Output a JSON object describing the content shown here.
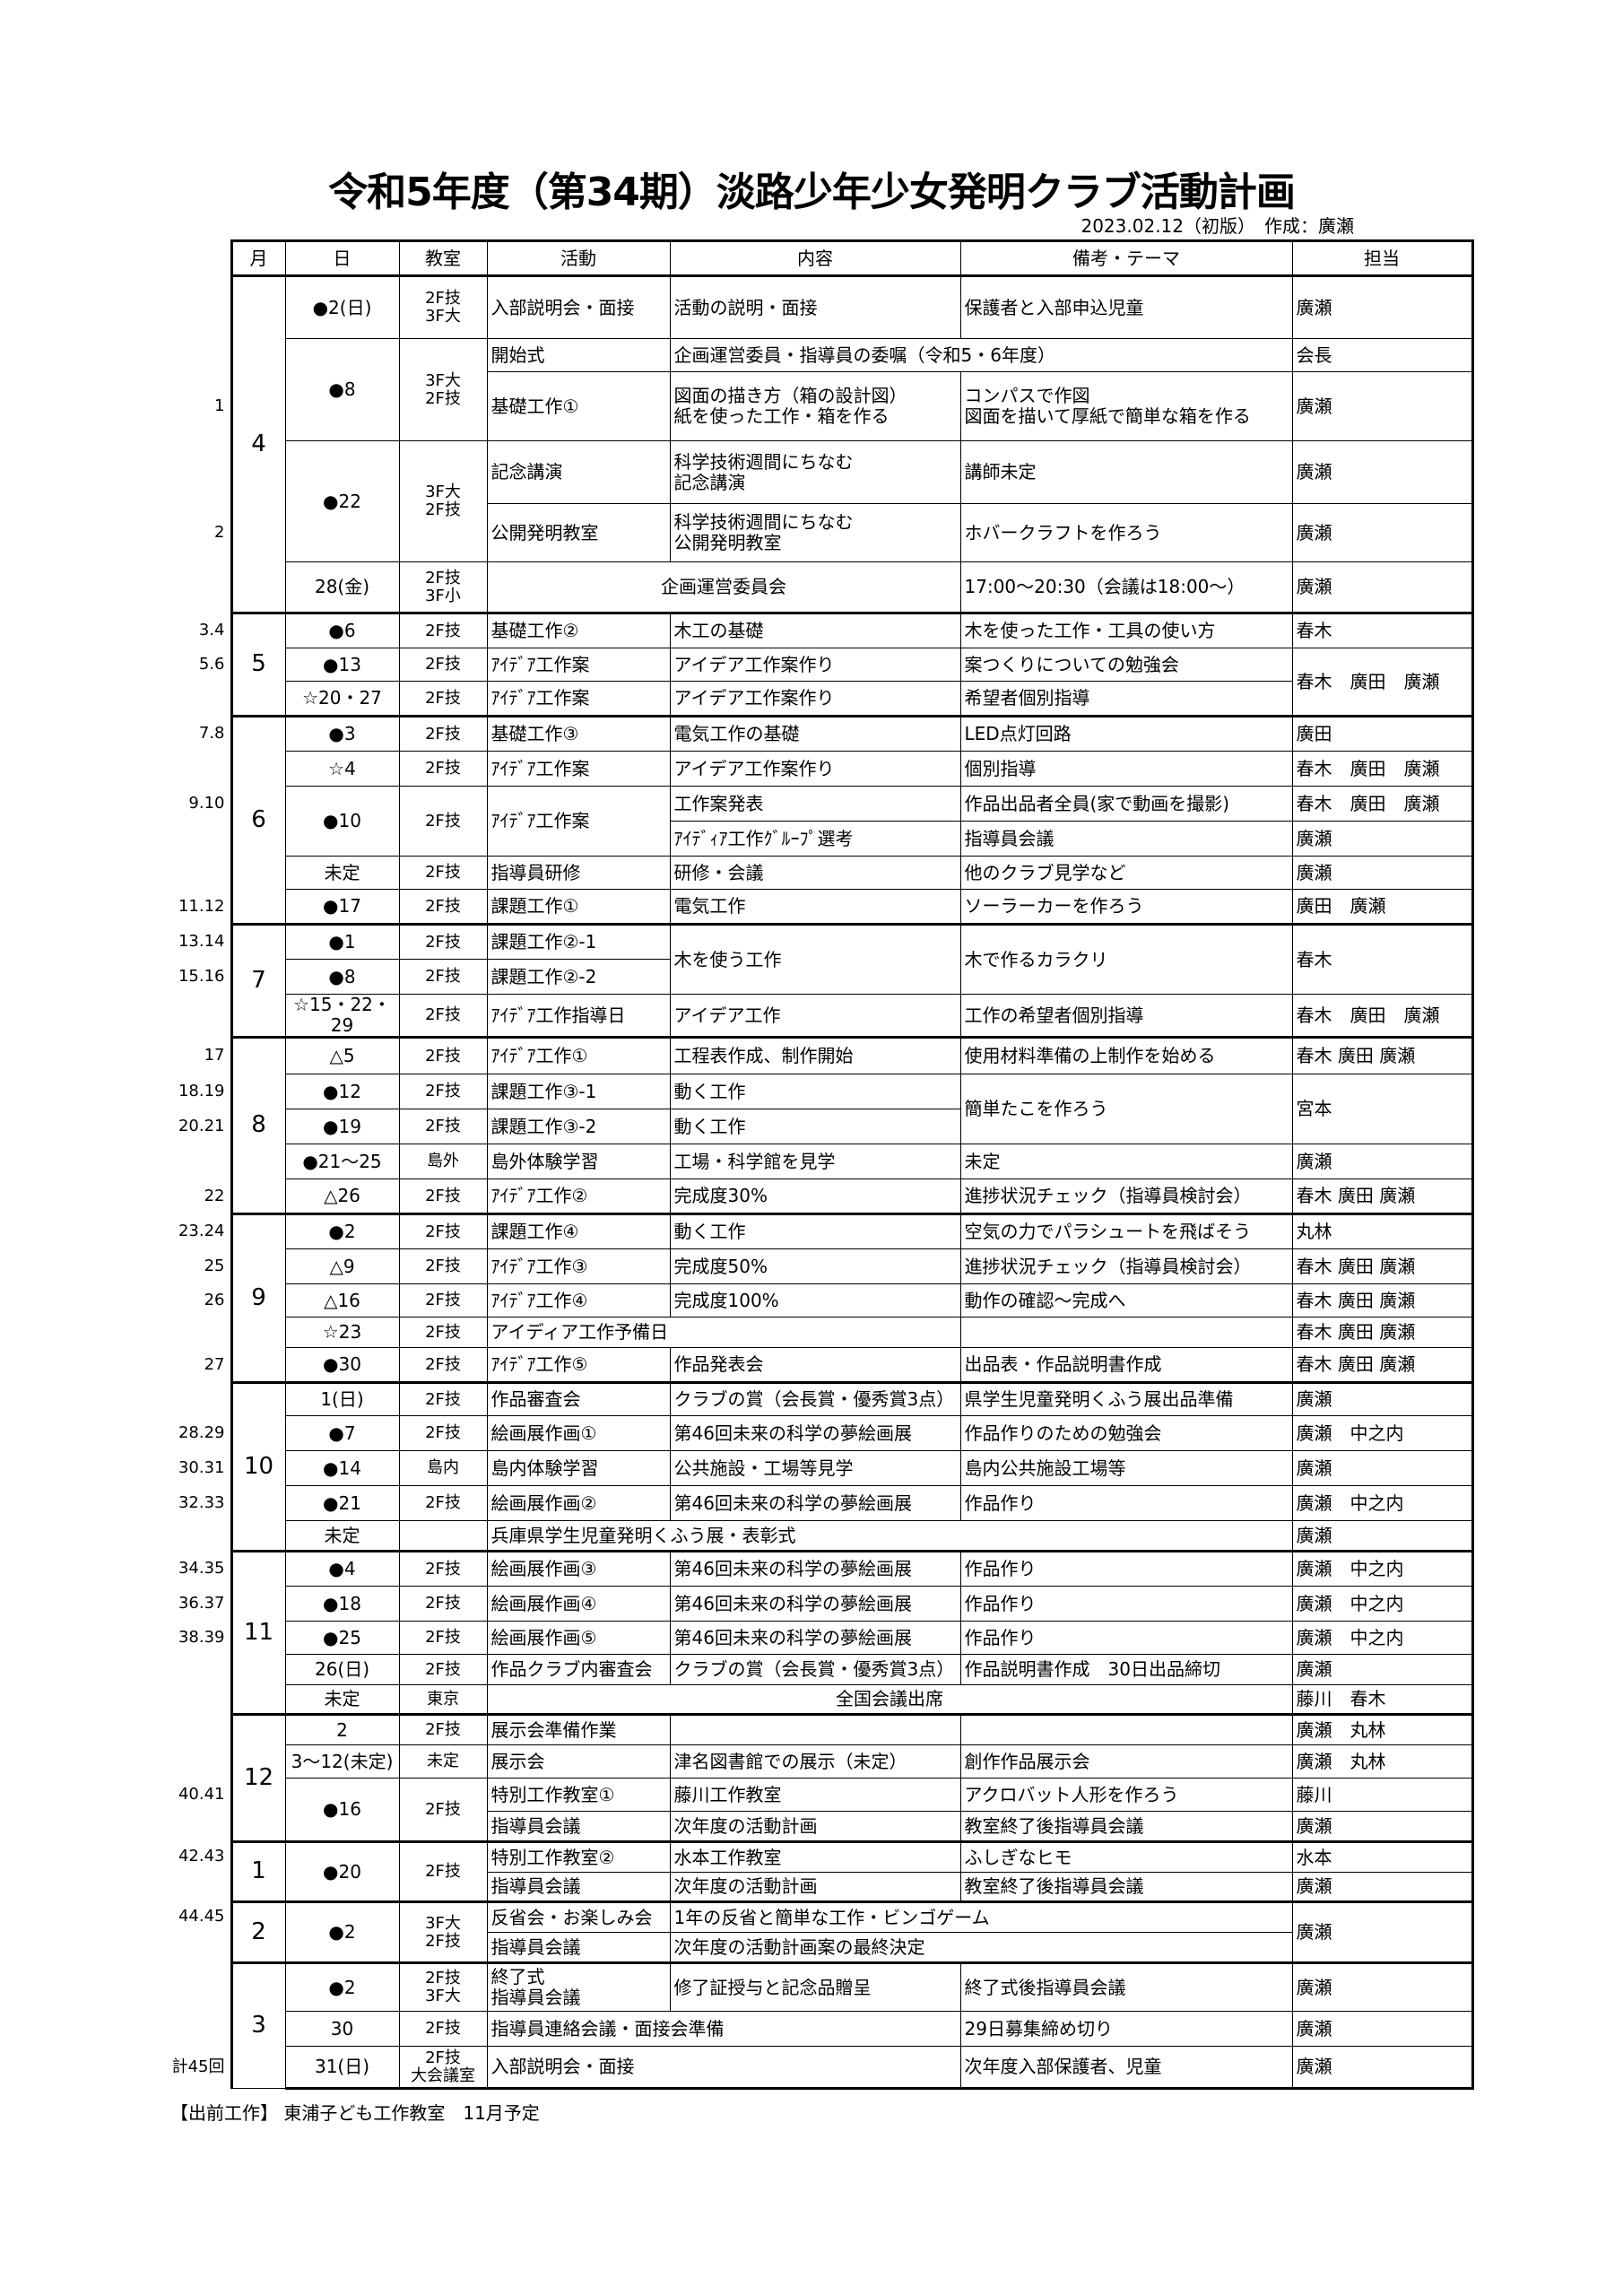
{
  "title": "令和5年度（第34期）淡路少年少女発明クラブ活動計画",
  "meta": "2023.02.12（初版）　作成：廣瀬",
  "headers": {
    "month": "月",
    "date": "日",
    "room": "教室",
    "activity": "活動",
    "content": "内容",
    "remarks": "備考・テーマ",
    "staff": "担当"
  },
  "rows": [
    {
      "month": "4",
      "date": "●2(日)",
      "room": "2F技\n3F大",
      "activity": "入部説明会・面接",
      "content": "活動の説明・面接",
      "remarks": "保護者と入部申込児童",
      "staff": "廣瀬"
    },
    {
      "date": "●8",
      "room": "3F大\n2F技",
      "activity": "開始式",
      "content": "企画運営委員・指導員の委嘱（令和5・6年度）",
      "staff": "会長"
    },
    {
      "note": "1",
      "activity": "基礎工作①",
      "content": "図面の描き方（箱の設計図）\n紙を使った工作・箱を作る",
      "remarks": "コンパスで作図\n図面を描いて厚紙で簡単な箱を作る",
      "staff": "廣瀬"
    },
    {
      "date": "●22",
      "room": "3F大\n2F技",
      "activity": "記念講演",
      "content": "科学技術週間にちなむ\n記念講演",
      "remarks": "講師未定",
      "staff": "廣瀬"
    },
    {
      "note": "2",
      "activity": "公開発明教室",
      "content": "科学技術週間にちなむ\n公開発明教室",
      "remarks": "ホバークラフトを作ろう",
      "staff": "廣瀬"
    },
    {
      "date": "28(金)",
      "room": "2F技\n3F小",
      "activity": "企画運営委員会",
      "remarks": "17:00～20:30（会議は18:00～）",
      "staff": "廣瀬"
    },
    {
      "note": "3.4",
      "month": "5",
      "date": "●6",
      "room": "2F技",
      "activity": "基礎工作②",
      "content": "木工の基礎",
      "remarks": "木を使った工作・工具の使い方",
      "staff": "春木"
    },
    {
      "note": "5.6",
      "date": "●13",
      "room": "2F技",
      "activity": "ｱｲﾃﾞｱ工作案",
      "content": "アイデア工作案作り",
      "remarks": "案つくりについての勉強会",
      "staff": "春木　廣田　廣瀬"
    },
    {
      "date": "☆20・27",
      "room": "2F技",
      "activity": "ｱｲﾃﾞｱ工作案",
      "content": "アイデア工作案作り",
      "remarks": "希望者個別指導"
    },
    {
      "note": "7.8",
      "month": "6",
      "date": "●3",
      "room": "2F技",
      "activity": "基礎工作③",
      "content": "電気工作の基礎",
      "remarks": "LED点灯回路",
      "staff": "廣田"
    },
    {
      "date": "☆4",
      "room": "2F技",
      "activity": "ｱｲﾃﾞｱ工作案",
      "content": "アイデア工作案作り",
      "remarks": "個別指導",
      "staff": "春木　廣田　廣瀬"
    },
    {
      "note": "9.10",
      "date": "●10",
      "room": "2F技",
      "activity": "ｱｲﾃﾞｱ工作案",
      "content": "工作案発表",
      "remarks": "作品出品者全員(家で動画を撮影)",
      "staff": "春木　廣田　廣瀬"
    },
    {
      "content": "ｱｲﾃﾞｨｱ工作ｸﾞﾙｰﾌﾟ選考",
      "remarks": "指導員会議",
      "staff": "廣瀬"
    },
    {
      "date": "未定",
      "room": "2F技",
      "activity": "指導員研修",
      "content": "研修・会議",
      "remarks": "他のクラブ見学など",
      "staff": "廣瀬"
    },
    {
      "note": "11.12",
      "date": "●17",
      "room": "2F技",
      "activity": "課題工作①",
      "content": "電気工作",
      "remarks": "ソーラーカーを作ろう",
      "staff": "廣田　廣瀬"
    },
    {
      "note": "13.14",
      "month": "7",
      "date": "●1",
      "room": "2F技",
      "activity": "課題工作②-1",
      "content": "木を使う工作",
      "remarks": "木で作るカラクリ",
      "staff": "春木"
    },
    {
      "note": "15.16",
      "date": "●8",
      "room": "2F技",
      "activity": "課題工作②-2"
    },
    {
      "date": "☆15・22・29",
      "room": "2F技",
      "activity": "ｱｲﾃﾞｱ工作指導日",
      "content": "アイデア工作",
      "remarks": "工作の希望者個別指導",
      "staff": "春木　廣田　廣瀬"
    },
    {
      "note": "17",
      "month": "8",
      "date": "△5",
      "room": "2F技",
      "activity": "ｱｲﾃﾞｱ工作①",
      "content": "工程表作成、制作開始",
      "remarks": "使用材料準備の上制作を始める",
      "staff": "春木 廣田 廣瀬"
    },
    {
      "note": "18.19",
      "date": "●12",
      "room": "2F技",
      "activity": "課題工作③-1",
      "content": "動く工作",
      "remarks": "簡単たこを作ろう",
      "staff": "宮本"
    },
    {
      "note": "20.21",
      "date": "●19",
      "room": "2F技",
      "activity": "課題工作③-2",
      "content": "動く工作"
    },
    {
      "date": "●21～25",
      "room": "島外",
      "activity": "島外体験学習",
      "content": "工場・科学館を見学",
      "remarks": "未定",
      "staff": "廣瀬"
    },
    {
      "note": "22",
      "date": "△26",
      "room": "2F技",
      "activity": "ｱｲﾃﾞｱ工作②",
      "content": "完成度30%",
      "remarks": "進捗状況チェック（指導員検討会）",
      "staff": "春木 廣田 廣瀬"
    },
    {
      "note": "23.24",
      "month": "9",
      "date": "●2",
      "room": "2F技",
      "activity": "課題工作④",
      "content": "動く工作",
      "remarks": "空気の力でパラシュートを飛ばそう",
      "staff": "丸林"
    },
    {
      "note": "25",
      "date": "△9",
      "room": "2F技",
      "activity": "ｱｲﾃﾞｱ工作③",
      "content": "完成度50%",
      "remarks": "進捗状況チェック（指導員検討会）",
      "staff": "春木 廣田 廣瀬"
    },
    {
      "note": "26",
      "date": "△16",
      "room": "2F技",
      "activity": "ｱｲﾃﾞｱ工作④",
      "content": "完成度100%",
      "remarks": "動作の確認～完成へ",
      "staff": "春木 廣田 廣瀬"
    },
    {
      "date": "☆23",
      "room": "2F技",
      "activity": "アイディア工作予備日",
      "staff": "春木 廣田 廣瀬"
    },
    {
      "note": "27",
      "date": "●30",
      "room": "2F技",
      "activity": "ｱｲﾃﾞｱ工作⑤",
      "content": "作品発表会",
      "remarks": "出品表・作品説明書作成",
      "staff": "春木 廣田 廣瀬"
    },
    {
      "month": "10",
      "date": "1(日)",
      "room": "2F技",
      "activity": "作品審査会",
      "content": "クラブの賞（会長賞・優秀賞3点）",
      "remarks": "県学生児童発明くふう展出品準備",
      "staff": "廣瀬"
    },
    {
      "note": "28.29",
      "date": "●7",
      "room": "2F技",
      "activity": "絵画展作画①",
      "content": "第46回未来の科学の夢絵画展",
      "remarks": "作品作りのための勉強会",
      "staff": "廣瀬　中之内"
    },
    {
      "note": "30.31",
      "date": "●14",
      "room": "島内",
      "activity": "島内体験学習",
      "content": "公共施設・工場等見学",
      "remarks": "島内公共施設工場等",
      "staff": "廣瀬"
    },
    {
      "note": "32.33",
      "date": "●21",
      "room": "2F技",
      "activity": "絵画展作画②",
      "content": "第46回未来の科学の夢絵画展",
      "remarks": "作品作り",
      "staff": "廣瀬　中之内"
    },
    {
      "date": "未定",
      "activity": "兵庫県学生児童発明くふう展・表彰式",
      "staff": "廣瀬"
    },
    {
      "note": "34.35",
      "month": "11",
      "date": "●4",
      "room": "2F技",
      "activity": "絵画展作画③",
      "content": "第46回未来の科学の夢絵画展",
      "remarks": "作品作り",
      "staff": "廣瀬　中之内"
    },
    {
      "note": "36.37",
      "date": "●18",
      "room": "2F技",
      "activity": "絵画展作画④",
      "content": "第46回未来の科学の夢絵画展",
      "remarks": "作品作り",
      "staff": "廣瀬　中之内"
    },
    {
      "note": "38.39",
      "date": "●25",
      "room": "2F技",
      "activity": "絵画展作画⑤",
      "content": "第46回未来の科学の夢絵画展",
      "remarks": "作品作り",
      "staff": "廣瀬　中之内"
    },
    {
      "date": "26(日)",
      "room": "2F技",
      "activity": "作品クラブ内審査会",
      "content": "クラブの賞（会長賞・優秀賞3点）",
      "remarks": "作品説明書作成　30日出品締切",
      "staff": "廣瀬"
    },
    {
      "date": "未定",
      "room": "東京",
      "activity": "全国会議出席",
      "staff": "藤川　春木"
    },
    {
      "month": "12",
      "date": "2",
      "room": "2F技",
      "activity": "展示会準備作業",
      "content": "",
      "remarks": "",
      "staff": "廣瀬　丸林"
    },
    {
      "date": "3～12(未定)",
      "room": "未定",
      "activity": "展示会",
      "content": "津名図書館での展示（未定）",
      "remarks": "創作作品展示会",
      "staff": "廣瀬　丸林"
    },
    {
      "note": "40.41",
      "date": "●16",
      "room": "2F技",
      "activity": "特別工作教室①",
      "content": "藤川工作教室",
      "remarks": "アクロバット人形を作ろう",
      "staff": "藤川"
    },
    {
      "activity": "指導員会議",
      "content": "次年度の活動計画",
      "remarks": "教室終了後指導員会議",
      "staff": "廣瀬"
    },
    {
      "note": "42.43",
      "month": "1",
      "date": "●20",
      "room": "2F技",
      "activity": "特別工作教室②",
      "content": "水本工作教室",
      "remarks": "ふしぎなヒモ",
      "staff": "水本"
    },
    {
      "activity": "指導員会議",
      "content": "次年度の活動計画",
      "remarks": "教室終了後指導員会議",
      "staff": "廣瀬"
    },
    {
      "note": "44.45",
      "month": "2",
      "date": "●2",
      "room": "3F大\n2F技",
      "activity": "反省会・お楽しみ会",
      "content": "1年の反省と簡単な工作・ビンゴゲーム",
      "staff": "廣瀬"
    },
    {
      "activity": "指導員会議",
      "content": "次年度の活動計画案の最終決定"
    },
    {
      "month": "3",
      "date": "●2",
      "room": "2F技\n3F大",
      "activity": "終了式\n指導員会議",
      "content": "修了証授与と記念品贈呈",
      "remarks": "終了式後指導員会議",
      "staff": "廣瀬"
    },
    {
      "date": "30",
      "room": "2F技",
      "activity": "指導員連絡会議・面接会準備",
      "remarks": "29日募集締め切り",
      "staff": "廣瀬"
    },
    {
      "note": "計45回",
      "date": "31(日)",
      "room": "2F技\n大会議室",
      "activity": "入部説明会・面接",
      "remarks": "次年度入部保護者、児童",
      "staff": "廣瀬"
    }
  ],
  "footer": "【出前工作】 東浦子ども工作教室　11月予定"
}
